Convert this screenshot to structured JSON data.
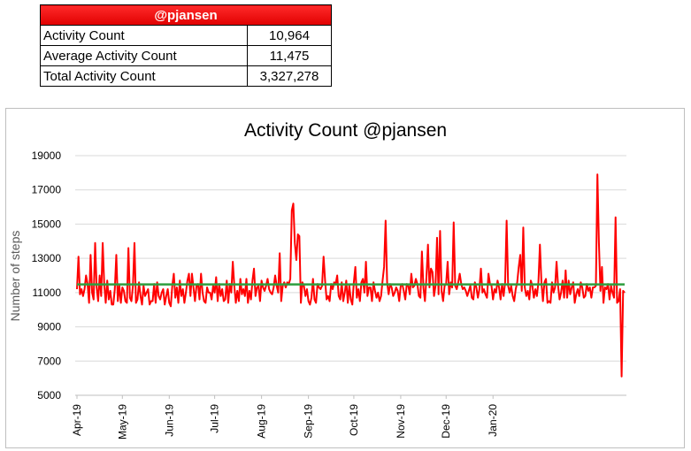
{
  "summary": {
    "header": "@pjansen",
    "rows": [
      {
        "label": "Activity Count",
        "value": "10,964"
      },
      {
        "label": "Average Activity Count",
        "value": "11,475"
      },
      {
        "label": "Total Activity Count",
        "value": "3,327,278"
      }
    ]
  },
  "chart_data": {
    "type": "line",
    "title": "Activity Count @pjansen",
    "xlabel": "",
    "ylabel": "Number of steps",
    "ylim": [
      5000,
      19000
    ],
    "yticks": [
      5000,
      7000,
      9000,
      11000,
      13000,
      15000,
      17000,
      19000
    ],
    "xticks": [
      "Apr-19",
      "May-19",
      "Jun-19",
      "Jul-19",
      "Aug-19",
      "Sep-19",
      "Oct-19",
      "Nov-19",
      "Dec-19",
      "Jan-20"
    ],
    "x_start": "2019-04-01",
    "grid": true,
    "legend": "none",
    "series": [
      {
        "color": "#ff0000",
        "values": [
          11200,
          13100,
          10900,
          11200,
          10800,
          11200,
          12000,
          11500,
          10400,
          13200,
          11000,
          10600,
          13900,
          11300,
          10500,
          12000,
          10800,
          13900,
          11500,
          10400,
          11700,
          10600,
          11100,
          10300,
          10300,
          11200,
          13200,
          10500,
          11400,
          10400,
          11300,
          11100,
          10500,
          10400,
          13600,
          10700,
          10500,
          11400,
          13900,
          10400,
          10600,
          11600,
          10800,
          10300,
          11400,
          10800,
          11000,
          11200,
          10300,
          10500,
          10500,
          11500,
          10400,
          11600,
          10800,
          10600,
          11000,
          11200,
          10300,
          10800,
          11200,
          10400,
          10200,
          11400,
          12100,
          10700,
          11300,
          10400,
          11700,
          10800,
          11200,
          10400,
          11000,
          11700,
          12100,
          10800,
          12100,
          11300,
          10500,
          11400,
          11500,
          10600,
          12100,
          11000,
          10500,
          10400,
          11300,
          11000,
          11000,
          10600,
          11400,
          11000,
          11900,
          10500,
          11500,
          10800,
          11200,
          10500,
          10600,
          11700,
          10400,
          11500,
          11000,
          12800,
          11400,
          10400,
          11100,
          10500,
          11800,
          10900,
          11200,
          10800,
          11800,
          10400,
          11100,
          10600,
          11700,
          12400,
          10800,
          11300,
          11400,
          10500,
          11700,
          11300,
          11100,
          11400,
          11800,
          11200,
          11000,
          10900,
          11300,
          12000,
          11400,
          11000,
          13300,
          10500,
          11400,
          11600,
          11300,
          11600,
          11500,
          11800,
          15800,
          16200,
          13900,
          12900,
          14400,
          14300,
          10400,
          11600,
          11400,
          10800,
          11200,
          10500,
          10300,
          10700,
          11800,
          10600,
          10400,
          11500,
          11300,
          11200,
          11400,
          13100,
          11700,
          10600,
          10800,
          10500,
          11500,
          11200,
          11600,
          11500,
          12000,
          10800,
          10600,
          11600,
          10500,
          11000,
          11700,
          10400,
          11400,
          10600,
          10300,
          11600,
          12500,
          10700,
          11200,
          10500,
          11600,
          11800,
          11000,
          12800,
          10800,
          11300,
          11300,
          10500,
          11600,
          11100,
          10700,
          11000,
          10500,
          10800,
          11700,
          12500,
          15200,
          11600,
          10900,
          11500,
          11300,
          10800,
          11000,
          11300,
          11100,
          10500,
          11400,
          11500,
          11100,
          10600,
          11500,
          11400,
          10900,
          12100,
          11300,
          11400,
          11800,
          11500,
          10800,
          10700,
          13400,
          11300,
          10500,
          11900,
          13800,
          11300,
          12400,
          12200,
          10800,
          11400,
          14200,
          10900,
          14600,
          11100,
          10500,
          11400,
          11500,
          12800,
          10900,
          11600,
          11300,
          15100,
          11400,
          11200,
          11600,
          12100,
          11500,
          11200,
          11300,
          11100,
          10800,
          11100,
          11400,
          10700,
          10600,
          11600,
          11300,
          10700,
          11200,
          12400,
          11000,
          11200,
          10900,
          10700,
          12100,
          11500,
          11400,
          10600,
          11200,
          11000,
          11700,
          11300,
          10600,
          11500,
          10800,
          11600,
          15200,
          11400,
          11000,
          11400,
          10800,
          10500,
          11200,
          11600,
          12500,
          13200,
          11100,
          14800,
          11300,
          10800,
          11100,
          10600,
          11700,
          11400,
          10700,
          11200,
          10800,
          11600,
          13800,
          11600,
          10500,
          11600,
          11800,
          10400,
          10500,
          10400,
          11600,
          11000,
          11300,
          12800,
          11400,
          10600,
          11000,
          11700,
          10700,
          12300,
          10700,
          11700,
          10900,
          11300,
          11600,
          10400,
          10900,
          11200,
          10800,
          11600,
          11300,
          10700,
          10800,
          11500,
          11100,
          11300,
          10700,
          11300,
          11300,
          11400,
          17900,
          13900,
          11100,
          12500,
          10400,
          11300,
          11200,
          11500,
          10600,
          11400,
          11000,
          10700,
          15400,
          10400,
          10500,
          11200,
          6100,
          11100,
          11000
        ]
      },
      {
        "color": "#2e9e3f",
        "values": [
          11475
        ]
      }
    ]
  }
}
